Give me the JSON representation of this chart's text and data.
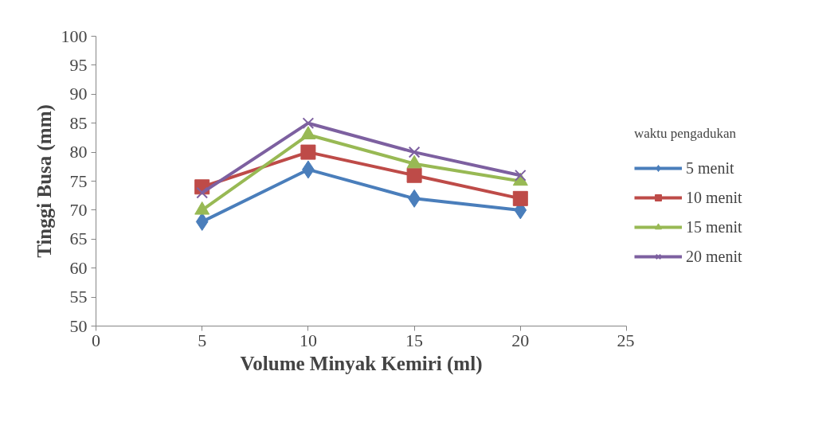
{
  "chart_data": {
    "type": "line",
    "xlabel": "Volume Minyak Kemiri (ml)",
    "ylabel": "Tinggi Busa (mm)",
    "legend_title": "waktu pengadukan",
    "x": [
      5,
      10,
      15,
      20
    ],
    "xlim": [
      0,
      25
    ],
    "xticks": [
      0,
      5,
      10,
      15,
      20,
      25
    ],
    "ylim": [
      50,
      100
    ],
    "yticks": [
      50,
      55,
      60,
      65,
      70,
      75,
      80,
      85,
      90,
      95,
      100
    ],
    "grid": false,
    "legend": "right",
    "line_style": "solid",
    "series": [
      {
        "name": "5 menit",
        "color": "#4a7ebb",
        "marker": "diamond",
        "values": [
          68,
          77,
          72,
          70
        ]
      },
      {
        "name": "10 menit",
        "color": "#be4b48",
        "marker": "square",
        "values": [
          74,
          80,
          76,
          72
        ]
      },
      {
        "name": "15 menit",
        "color": "#98b954",
        "marker": "triangle",
        "values": [
          70,
          83,
          78,
          75
        ]
      },
      {
        "name": "20 menit",
        "color": "#7d60a0",
        "marker": "cross",
        "values": [
          73,
          85,
          80,
          76
        ]
      }
    ]
  }
}
